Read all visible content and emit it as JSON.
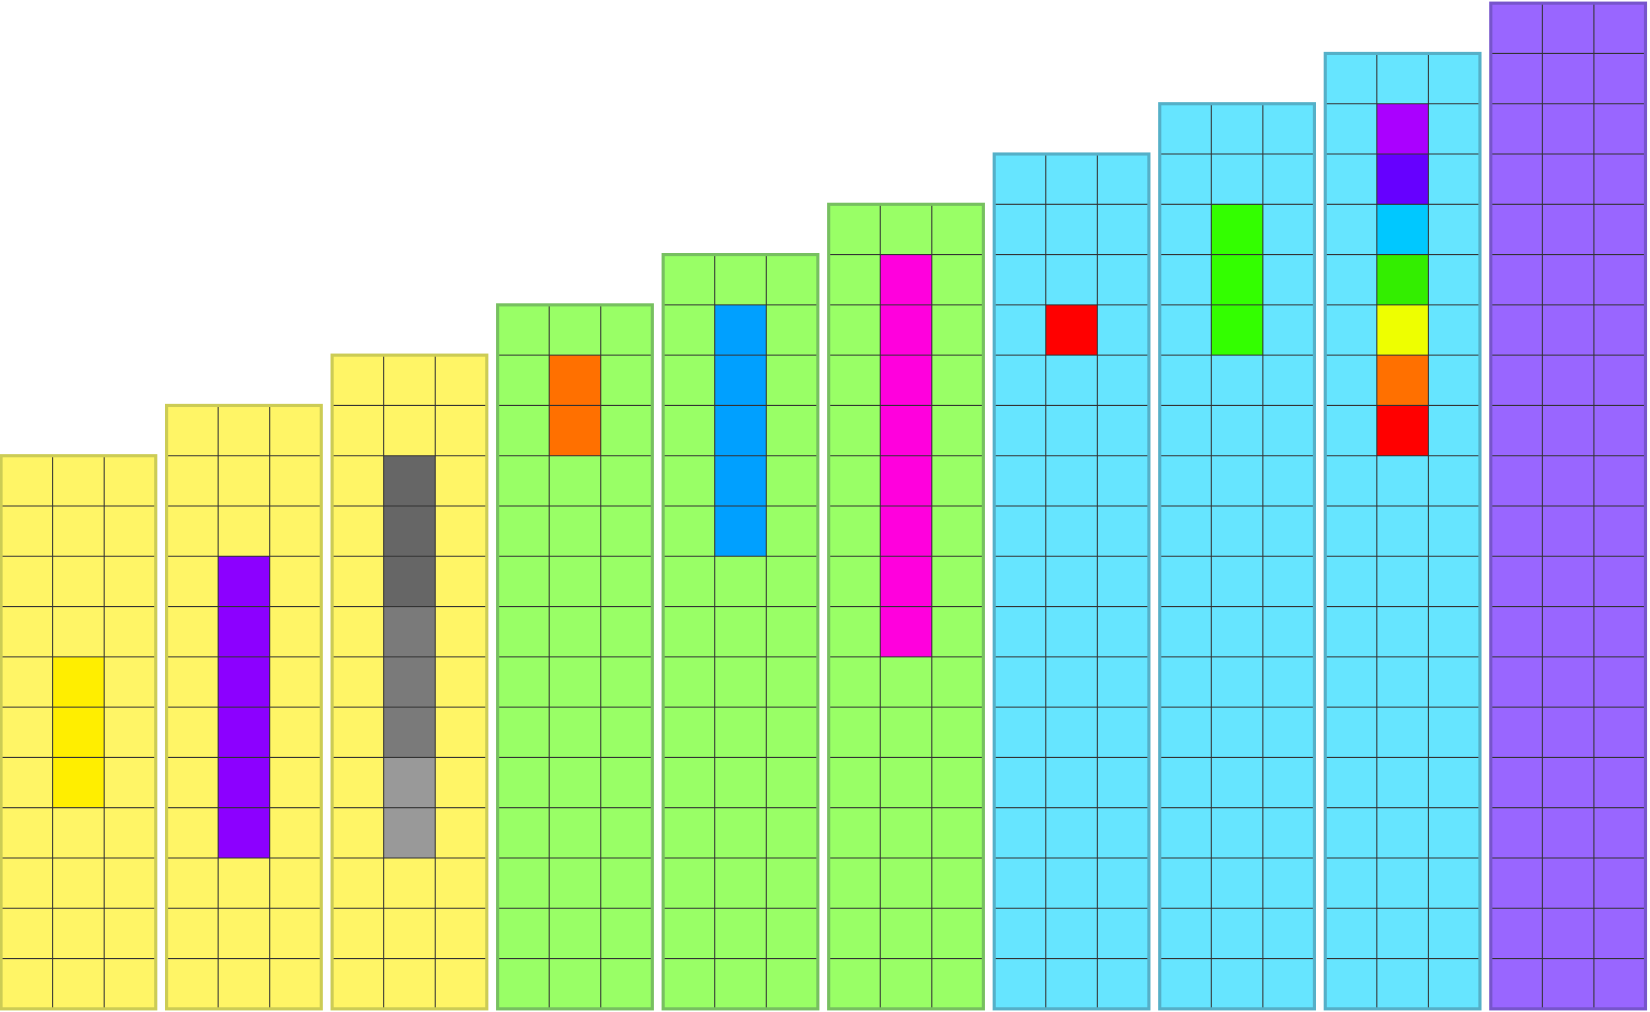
{
  "columns": [
    {
      "rows": 11,
      "fill": "#fff566",
      "stroke": "#cccc55",
      "cells": [
        {
          "row": 4,
          "color": "#ffee00"
        },
        {
          "row": 5,
          "color": "#ffee00"
        },
        {
          "row": 6,
          "color": "#ffee00"
        }
      ]
    },
    {
      "rows": 12,
      "fill": "#fff566",
      "stroke": "#cccc55",
      "cells": [
        {
          "row": 3,
          "color": "#8c00ff"
        },
        {
          "row": 4,
          "color": "#8c00ff"
        },
        {
          "row": 5,
          "color": "#8c00ff"
        },
        {
          "row": 6,
          "color": "#8c00ff"
        },
        {
          "row": 7,
          "color": "#8c00ff"
        },
        {
          "row": 8,
          "color": "#8c00ff"
        }
      ]
    },
    {
      "rows": 13,
      "fill": "#fff566",
      "stroke": "#cccc55",
      "cells": [
        {
          "row": 2,
          "color": "#666666"
        },
        {
          "row": 3,
          "color": "#666666"
        },
        {
          "row": 4,
          "color": "#666666"
        },
        {
          "row": 5,
          "color": "#7a7a7a"
        },
        {
          "row": 6,
          "color": "#7a7a7a"
        },
        {
          "row": 7,
          "color": "#7a7a7a"
        },
        {
          "row": 8,
          "color": "#999999"
        },
        {
          "row": 9,
          "color": "#999999"
        }
      ]
    },
    {
      "rows": 14,
      "fill": "#99ff66",
      "stroke": "#77c060",
      "cells": [
        {
          "row": 1,
          "color": "#ff7000"
        },
        {
          "row": 2,
          "color": "#ff7000"
        }
      ]
    },
    {
      "rows": 15,
      "fill": "#99ff66",
      "stroke": "#77c060",
      "cells": [
        {
          "row": 1,
          "color": "#00a0ff"
        },
        {
          "row": 2,
          "color": "#00a0ff"
        },
        {
          "row": 3,
          "color": "#00a0ff"
        },
        {
          "row": 4,
          "color": "#00a0ff"
        },
        {
          "row": 5,
          "color": "#00a0ff"
        }
      ]
    },
    {
      "rows": 16,
      "fill": "#99ff66",
      "stroke": "#77c060",
      "cells": [
        {
          "row": 1,
          "color": "#ff00dd"
        },
        {
          "row": 2,
          "color": "#ff00dd"
        },
        {
          "row": 3,
          "color": "#ff00dd"
        },
        {
          "row": 4,
          "color": "#ff00dd"
        },
        {
          "row": 5,
          "color": "#ff00dd"
        },
        {
          "row": 6,
          "color": "#ff00dd"
        },
        {
          "row": 7,
          "color": "#ff00dd"
        },
        {
          "row": 8,
          "color": "#ff00dd"
        }
      ]
    },
    {
      "rows": 17,
      "fill": "#66e5ff",
      "stroke": "#55b0c8",
      "cells": [
        {
          "row": 3,
          "color": "#ff0000"
        }
      ]
    },
    {
      "rows": 18,
      "fill": "#66e5ff",
      "stroke": "#55b0c8",
      "cells": [
        {
          "row": 2,
          "color": "#33ff00"
        },
        {
          "row": 3,
          "color": "#33ff00"
        },
        {
          "row": 4,
          "color": "#33ff00"
        }
      ]
    },
    {
      "rows": 19,
      "fill": "#66e5ff",
      "stroke": "#55b0c8",
      "cells": [
        {
          "row": 1,
          "color": "#aa00ff"
        },
        {
          "row": 2,
          "color": "#6600ff"
        },
        {
          "row": 3,
          "color": "#00c8ff"
        },
        {
          "row": 4,
          "color": "#33ee00"
        },
        {
          "row": 5,
          "color": "#eeff00"
        },
        {
          "row": 6,
          "color": "#ff7000"
        },
        {
          "row": 7,
          "color": "#ff0000"
        }
      ]
    },
    {
      "rows": 20,
      "fill": "#9966ff",
      "stroke": "#7755cc",
      "cells": []
    }
  ]
}
